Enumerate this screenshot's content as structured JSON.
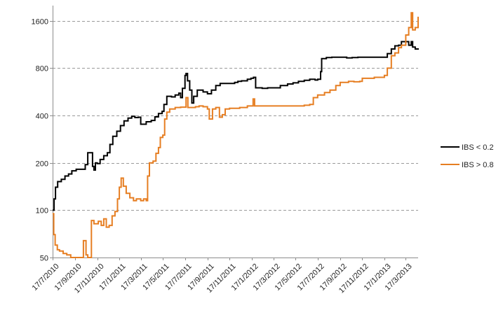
{
  "chart_data": {
    "type": "line",
    "title": "",
    "xlabel": "",
    "ylabel": "",
    "y_scale": "log",
    "ylim": [
      50,
      2000
    ],
    "y_ticks": [
      "50",
      "100",
      "200",
      "400",
      "800",
      "1600"
    ],
    "y_tick_values": [
      50,
      100,
      200,
      400,
      800,
      1600
    ],
    "x_ticks": [
      "17/7/2010",
      "17/9/2010",
      "17/11/2010",
      "17/1/2011",
      "17/3/2011",
      "17/5/2011",
      "17/7/2011",
      "17/9/2011",
      "17/11/2011",
      "17/1/2012",
      "17/3/2012",
      "17/5/2012",
      "17/7/2012",
      "17/9/2012",
      "17/11/2012",
      "17/1/2013",
      "17/3/2013"
    ],
    "x_tick_dates": [
      "2010-07-17",
      "2010-09-17",
      "2010-11-17",
      "2011-01-17",
      "2011-03-17",
      "2011-05-17",
      "2011-07-17",
      "2011-09-17",
      "2011-11-17",
      "2012-01-17",
      "2012-03-17",
      "2012-05-17",
      "2012-07-17",
      "2012-09-17",
      "2012-11-17",
      "2013-01-17",
      "2013-03-17"
    ],
    "x_range": [
      "2010-07-17",
      "2013-04-20"
    ],
    "grid": "horizontal-dashed",
    "legend_position": "right",
    "series": [
      {
        "name": "IBS < 0.2",
        "color": "#000000",
        "points": [
          [
            "2010-07-17",
            100
          ],
          [
            "2010-07-21",
            118
          ],
          [
            "2010-07-25",
            140
          ],
          [
            "2010-07-31",
            152
          ],
          [
            "2010-08-10",
            157
          ],
          [
            "2010-08-20",
            165
          ],
          [
            "2010-08-30",
            170
          ],
          [
            "2010-09-08",
            178
          ],
          [
            "2010-09-20",
            182
          ],
          [
            "2010-10-05",
            182
          ],
          [
            "2010-10-15",
            195
          ],
          [
            "2010-10-22",
            232
          ],
          [
            "2010-11-01",
            232
          ],
          [
            "2010-11-04",
            190
          ],
          [
            "2010-11-08",
            180
          ],
          [
            "2010-11-12",
            200
          ],
          [
            "2010-11-17",
            198
          ],
          [
            "2010-11-25",
            210
          ],
          [
            "2010-12-05",
            222
          ],
          [
            "2010-12-15",
            232
          ],
          [
            "2010-12-22",
            262
          ],
          [
            "2010-12-30",
            295
          ],
          [
            "2011-01-10",
            318
          ],
          [
            "2011-01-20",
            345
          ],
          [
            "2011-01-30",
            370
          ],
          [
            "2011-02-10",
            385
          ],
          [
            "2011-02-20",
            395
          ],
          [
            "2011-03-01",
            388
          ],
          [
            "2011-03-10",
            390
          ],
          [
            "2011-03-17",
            352
          ],
          [
            "2011-04-01",
            365
          ],
          [
            "2011-04-15",
            372
          ],
          [
            "2011-04-25",
            392
          ],
          [
            "2011-05-05",
            412
          ],
          [
            "2011-05-15",
            425
          ],
          [
            "2011-05-20",
            470
          ],
          [
            "2011-05-28",
            530
          ],
          [
            "2011-06-10",
            525
          ],
          [
            "2011-06-20",
            540
          ],
          [
            "2011-06-30",
            555
          ],
          [
            "2011-07-05",
            520
          ],
          [
            "2011-07-10",
            595
          ],
          [
            "2011-07-17",
            720
          ],
          [
            "2011-07-20",
            740
          ],
          [
            "2011-07-24",
            665
          ],
          [
            "2011-07-30",
            580
          ],
          [
            "2011-08-05",
            480
          ],
          [
            "2011-08-10",
            530
          ],
          [
            "2011-08-20",
            580
          ],
          [
            "2011-09-05",
            565
          ],
          [
            "2011-09-17",
            550
          ],
          [
            "2011-09-28",
            580
          ],
          [
            "2011-10-10",
            620
          ],
          [
            "2011-10-22",
            640
          ],
          [
            "2011-11-05",
            640
          ],
          [
            "2011-11-17",
            640
          ],
          [
            "2011-12-01",
            650
          ],
          [
            "2011-12-10",
            660
          ],
          [
            "2011-12-20",
            665
          ],
          [
            "2012-01-05",
            680
          ],
          [
            "2012-01-15",
            690
          ],
          [
            "2012-01-22",
            700
          ],
          [
            "2012-01-28",
            600
          ],
          [
            "2012-02-15",
            595
          ],
          [
            "2012-03-01",
            600
          ],
          [
            "2012-03-17",
            600
          ],
          [
            "2012-04-05",
            620
          ],
          [
            "2012-04-25",
            635
          ],
          [
            "2012-05-10",
            645
          ],
          [
            "2012-05-25",
            660
          ],
          [
            "2012-06-10",
            670
          ],
          [
            "2012-06-25",
            680
          ],
          [
            "2012-07-10",
            672
          ],
          [
            "2012-07-17",
            680
          ],
          [
            "2012-07-25",
            760
          ],
          [
            "2012-07-28",
            920
          ],
          [
            "2012-08-10",
            935
          ],
          [
            "2012-08-25",
            940
          ],
          [
            "2012-09-17",
            940
          ],
          [
            "2012-10-05",
            930
          ],
          [
            "2012-10-20",
            935
          ],
          [
            "2012-11-05",
            940
          ],
          [
            "2012-11-17",
            940
          ],
          [
            "2012-12-01",
            940
          ],
          [
            "2012-12-15",
            940
          ],
          [
            "2013-01-05",
            940
          ],
          [
            "2013-01-17",
            940
          ],
          [
            "2013-01-25",
            990
          ],
          [
            "2013-02-05",
            1060
          ],
          [
            "2013-02-15",
            1110
          ],
          [
            "2013-02-25",
            1120
          ],
          [
            "2013-03-05",
            1180
          ],
          [
            "2013-03-17",
            1180
          ],
          [
            "2013-03-25",
            1120
          ],
          [
            "2013-04-01",
            1180
          ],
          [
            "2013-04-05",
            1090
          ],
          [
            "2013-04-12",
            1060
          ],
          [
            "2013-04-20",
            1070
          ]
        ]
      },
      {
        "name": "IBS > 0.8",
        "color": "#e67e22",
        "points": [
          [
            "2010-07-17",
            95
          ],
          [
            "2010-07-20",
            70
          ],
          [
            "2010-07-24",
            60
          ],
          [
            "2010-07-30",
            56
          ],
          [
            "2010-08-05",
            55
          ],
          [
            "2010-08-15",
            53
          ],
          [
            "2010-08-25",
            52
          ],
          [
            "2010-09-05",
            50
          ],
          [
            "2010-09-17",
            50
          ],
          [
            "2010-10-01",
            50
          ],
          [
            "2010-10-10",
            64
          ],
          [
            "2010-10-17",
            52
          ],
          [
            "2010-10-22",
            50
          ],
          [
            "2010-11-01",
            86
          ],
          [
            "2010-11-08",
            82
          ],
          [
            "2010-11-20",
            85
          ],
          [
            "2010-11-28",
            80
          ],
          [
            "2010-12-05",
            88
          ],
          [
            "2010-12-12",
            78
          ],
          [
            "2010-12-20",
            80
          ],
          [
            "2010-12-28",
            92
          ],
          [
            "2011-01-05",
            98
          ],
          [
            "2011-01-12",
            118
          ],
          [
            "2011-01-17",
            140
          ],
          [
            "2011-01-22",
            160
          ],
          [
            "2011-01-28",
            142
          ],
          [
            "2011-02-05",
            128
          ],
          [
            "2011-02-15",
            120
          ],
          [
            "2011-02-25",
            115
          ],
          [
            "2011-03-05",
            118
          ],
          [
            "2011-03-17",
            115
          ],
          [
            "2011-03-25",
            118
          ],
          [
            "2011-04-01",
            115
          ],
          [
            "2011-04-05",
            165
          ],
          [
            "2011-04-10",
            200
          ],
          [
            "2011-04-20",
            205
          ],
          [
            "2011-04-28",
            230
          ],
          [
            "2011-05-05",
            250
          ],
          [
            "2011-05-10",
            290
          ],
          [
            "2011-05-17",
            300
          ],
          [
            "2011-05-22",
            380
          ],
          [
            "2011-05-28",
            420
          ],
          [
            "2011-06-05",
            440
          ],
          [
            "2011-06-20",
            450
          ],
          [
            "2011-07-05",
            452
          ],
          [
            "2011-07-17",
            452
          ],
          [
            "2011-07-20",
            520
          ],
          [
            "2011-07-25",
            450
          ],
          [
            "2011-08-05",
            450
          ],
          [
            "2011-08-15",
            455
          ],
          [
            "2011-08-25",
            460
          ],
          [
            "2011-09-05",
            455
          ],
          [
            "2011-09-17",
            440
          ],
          [
            "2011-09-22",
            380
          ],
          [
            "2011-10-01",
            440
          ],
          [
            "2011-10-10",
            450
          ],
          [
            "2011-10-20",
            390
          ],
          [
            "2011-10-28",
            405
          ],
          [
            "2011-11-05",
            440
          ],
          [
            "2011-11-17",
            445
          ],
          [
            "2011-12-01",
            445
          ],
          [
            "2011-12-15",
            450
          ],
          [
            "2012-01-05",
            460
          ],
          [
            "2012-01-17",
            460
          ],
          [
            "2012-01-21",
            510
          ],
          [
            "2012-01-25",
            460
          ],
          [
            "2012-02-15",
            460
          ],
          [
            "2012-03-17",
            460
          ],
          [
            "2012-04-15",
            460
          ],
          [
            "2012-05-17",
            460
          ],
          [
            "2012-06-10",
            465
          ],
          [
            "2012-06-25",
            470
          ],
          [
            "2012-07-05",
            520
          ],
          [
            "2012-07-17",
            540
          ],
          [
            "2012-08-05",
            560
          ],
          [
            "2012-08-20",
            580
          ],
          [
            "2012-09-05",
            620
          ],
          [
            "2012-09-17",
            650
          ],
          [
            "2012-10-10",
            660
          ],
          [
            "2012-10-25",
            655
          ],
          [
            "2012-11-10",
            660
          ],
          [
            "2012-11-17",
            690
          ],
          [
            "2012-12-05",
            690
          ],
          [
            "2012-12-20",
            700
          ],
          [
            "2013-01-05",
            700
          ],
          [
            "2013-01-17",
            720
          ],
          [
            "2013-01-25",
            800
          ],
          [
            "2013-02-05",
            960
          ],
          [
            "2013-02-15",
            1000
          ],
          [
            "2013-02-25",
            1080
          ],
          [
            "2013-03-05",
            1120
          ],
          [
            "2013-03-17",
            1300
          ],
          [
            "2013-03-25",
            1450
          ],
          [
            "2013-04-01",
            1800
          ],
          [
            "2013-04-05",
            1400
          ],
          [
            "2013-04-12",
            1450
          ],
          [
            "2013-04-20",
            1700
          ]
        ]
      }
    ]
  }
}
